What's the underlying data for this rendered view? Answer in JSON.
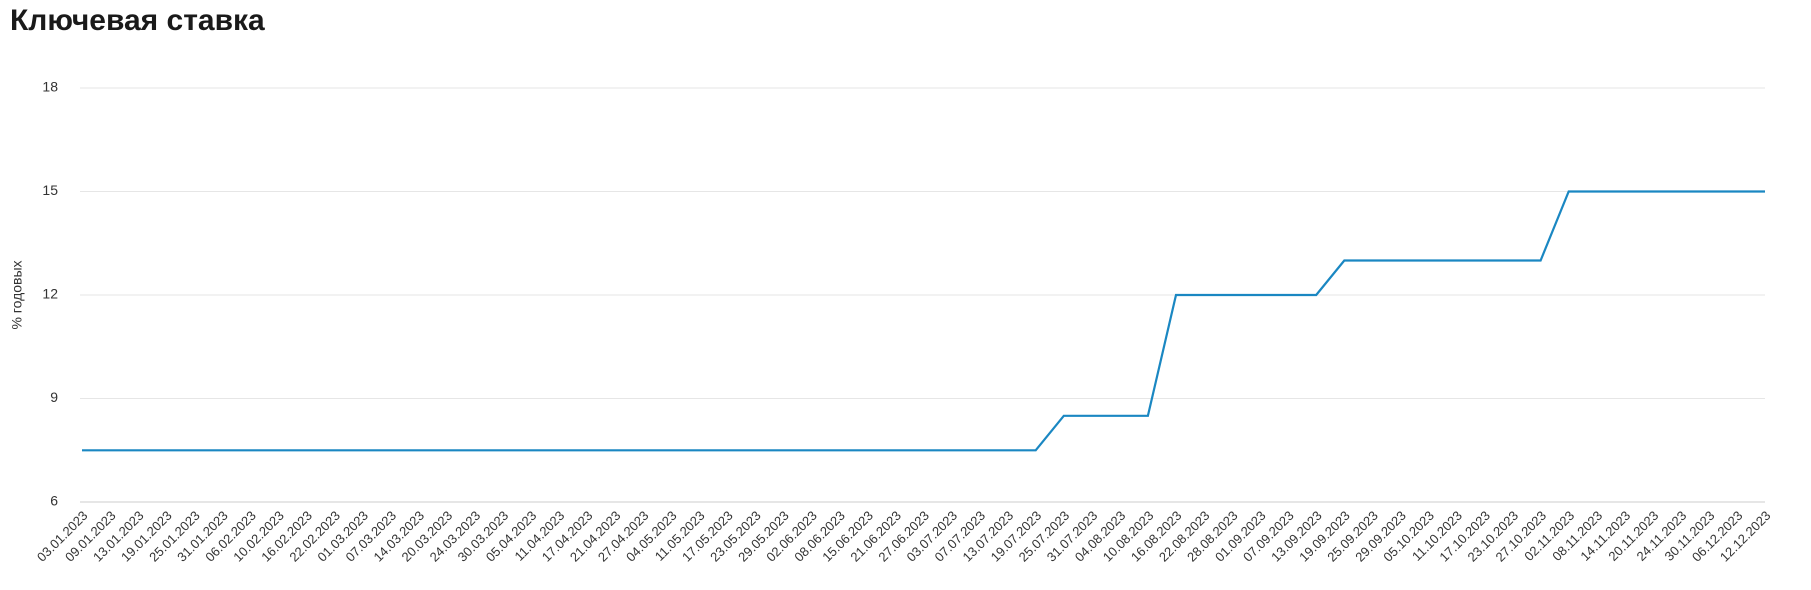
{
  "chart_data": {
    "type": "line",
    "title": "Ключевая ставка",
    "y_label": "% годовых",
    "categories": [
      "03.01.2023",
      "09.01.2023",
      "13.01.2023",
      "19.01.2023",
      "25.01.2023",
      "31.01.2023",
      "06.02.2023",
      "10.02.2023",
      "16.02.2023",
      "22.02.2023",
      "01.03.2023",
      "07.03.2023",
      "14.03.2023",
      "20.03.2023",
      "24.03.2023",
      "30.03.2023",
      "05.04.2023",
      "11.04.2023",
      "17.04.2023",
      "21.04.2023",
      "27.04.2023",
      "04.05.2023",
      "11.05.2023",
      "17.05.2023",
      "23.05.2023",
      "29.05.2023",
      "02.06.2023",
      "08.06.2023",
      "15.06.2023",
      "21.06.2023",
      "27.06.2023",
      "03.07.2023",
      "07.07.2023",
      "13.07.2023",
      "19.07.2023",
      "25.07.2023",
      "31.07.2023",
      "04.08.2023",
      "10.08.2023",
      "16.08.2023",
      "22.08.2023",
      "28.08.2023",
      "01.09.2023",
      "07.09.2023",
      "13.09.2023",
      "19.09.2023",
      "25.09.2023",
      "29.09.2023",
      "05.10.2023",
      "11.10.2023",
      "17.10.2023",
      "23.10.2023",
      "27.10.2023",
      "02.11.2023",
      "08.11.2023",
      "14.11.2023",
      "20.11.2023",
      "24.11.2023",
      "30.11.2023",
      "06.12.2023",
      "12.12.2023"
    ],
    "values": [
      7.5,
      7.5,
      7.5,
      7.5,
      7.5,
      7.5,
      7.5,
      7.5,
      7.5,
      7.5,
      7.5,
      7.5,
      7.5,
      7.5,
      7.5,
      7.5,
      7.5,
      7.5,
      7.5,
      7.5,
      7.5,
      7.5,
      7.5,
      7.5,
      7.5,
      7.5,
      7.5,
      7.5,
      7.5,
      7.5,
      7.5,
      7.5,
      7.5,
      7.5,
      7.5,
      8.5,
      8.5,
      8.5,
      8.5,
      12,
      12,
      12,
      12,
      12,
      12,
      13,
      13,
      13,
      13,
      13,
      13,
      13,
      13,
      15,
      15,
      15,
      15,
      15,
      15,
      15,
      15
    ],
    "color": "#1a87c2",
    "ylim": [
      6,
      18
    ],
    "yticks": [
      6,
      9,
      12,
      15,
      18
    ],
    "grid": true
  }
}
